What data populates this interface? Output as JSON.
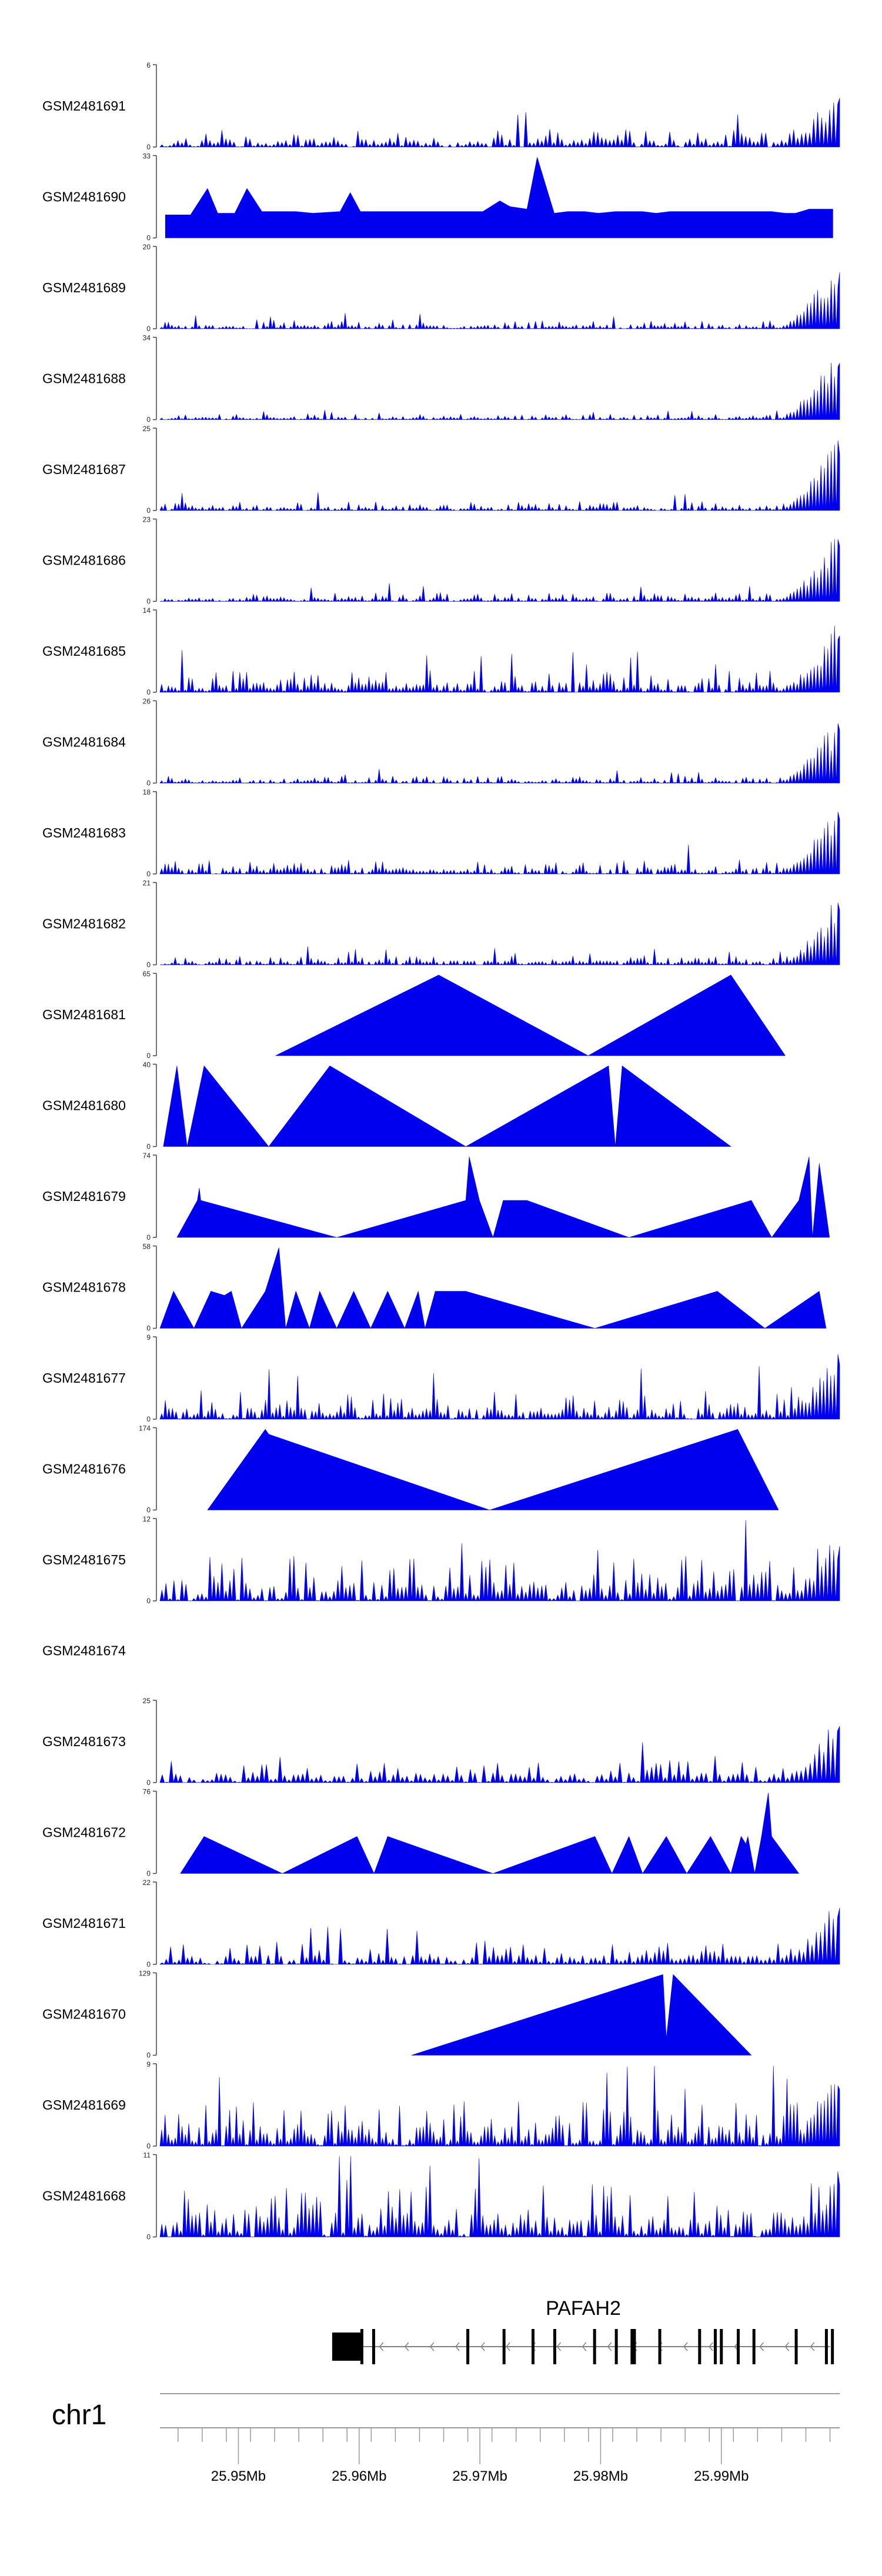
{
  "chart_data": {
    "type": "area",
    "title": "",
    "xlabel": "",
    "ylabel": "",
    "grid": false,
    "legend": "none",
    "color": "#0000ee",
    "x_range_mb": [
      25.9435,
      25.9998
    ],
    "x_ticks": [
      {
        "value": 25.95,
        "label": "25.95Mb"
      },
      {
        "value": 25.96,
        "label": "25.96Mb"
      },
      {
        "value": 25.97,
        "label": "25.97Mb"
      },
      {
        "value": 25.98,
        "label": "25.98Mb"
      },
      {
        "value": 25.99,
        "label": "25.99Mb"
      }
    ],
    "chromosome": "chr1",
    "gene": {
      "name": "PAFAH2",
      "start_mb": 25.9602,
      "end_mb": 25.999,
      "strand": "-",
      "exons_mb": [
        25.9612,
        25.969,
        25.972,
        25.9744,
        25.9762,
        25.9795,
        25.9813,
        25.9826,
        25.9828,
        25.9849,
        25.9882,
        25.9895,
        25.99,
        25.9914,
        25.9927,
        25.9962,
        25.9987,
        25.9992
      ]
    },
    "tracks": [
      {
        "name": "GSM2481691",
        "ymax": 6,
        "ymax_label": "6",
        "style": "spiky",
        "density": 170,
        "base": 0.1,
        "tail": 0.85,
        "seed": 11
      },
      {
        "name": "GSM2481690",
        "ymax": 33,
        "ymax_label": "33",
        "style": "peaks",
        "peaks": [
          [
            0.008,
            0.28
          ],
          [
            0.025,
            0.28
          ],
          [
            0.045,
            0.28
          ],
          [
            0.07,
            0.6
          ],
          [
            0.085,
            0.3
          ],
          [
            0.11,
            0.3
          ],
          [
            0.128,
            0.6
          ],
          [
            0.15,
            0.32
          ],
          [
            0.175,
            0.32
          ],
          [
            0.2,
            0.32
          ],
          [
            0.225,
            0.3
          ],
          [
            0.265,
            0.32
          ],
          [
            0.28,
            0.55
          ],
          [
            0.295,
            0.32
          ],
          [
            0.345,
            0.32
          ],
          [
            0.41,
            0.32
          ],
          [
            0.445,
            0.32
          ],
          [
            0.475,
            0.32
          ],
          [
            0.5,
            0.45
          ],
          [
            0.515,
            0.38
          ],
          [
            0.54,
            0.35
          ],
          [
            0.555,
            0.98
          ],
          [
            0.58,
            0.3
          ],
          [
            0.6,
            0.32
          ],
          [
            0.625,
            0.32
          ],
          [
            0.645,
            0.3
          ],
          [
            0.67,
            0.32
          ],
          [
            0.69,
            0.32
          ],
          [
            0.71,
            0.32
          ],
          [
            0.73,
            0.3
          ],
          [
            0.75,
            0.32
          ],
          [
            0.775,
            0.32
          ],
          [
            0.85,
            0.32
          ],
          [
            0.9,
            0.32
          ],
          [
            0.92,
            0.3
          ],
          [
            0.935,
            0.3
          ],
          [
            0.955,
            0.35
          ],
          [
            0.975,
            0.35
          ],
          [
            0.99,
            0.35
          ]
        ]
      },
      {
        "name": "GSM2481689",
        "ymax": 20,
        "ymax_label": "20",
        "style": "spiky",
        "density": 200,
        "base": 0.05,
        "tail": 0.98,
        "seed": 23
      },
      {
        "name": "GSM2481688",
        "ymax": 34,
        "ymax_label": "34",
        "style": "spiky",
        "density": 200,
        "base": 0.03,
        "tail": 0.98,
        "seed": 37
      },
      {
        "name": "GSM2481687",
        "ymax": 25,
        "ymax_label": "25",
        "style": "spiky",
        "density": 200,
        "base": 0.05,
        "tail": 0.98,
        "seed": 41
      },
      {
        "name": "GSM2481686",
        "ymax": 23,
        "ymax_label": "23",
        "style": "spiky",
        "density": 200,
        "base": 0.05,
        "tail": 0.96,
        "seed": 53
      },
      {
        "name": "GSM2481685",
        "ymax": 14,
        "ymax_label": "14",
        "style": "spiky",
        "density": 200,
        "base": 0.12,
        "tail": 0.98,
        "seed": 61
      },
      {
        "name": "GSM2481684",
        "ymax": 26,
        "ymax_label": "26",
        "style": "spiky",
        "density": 200,
        "base": 0.04,
        "tail": 0.92,
        "seed": 71
      },
      {
        "name": "GSM2481683",
        "ymax": 18,
        "ymax_label": "18",
        "style": "spiky",
        "density": 200,
        "base": 0.08,
        "tail": 0.95,
        "seed": 83
      },
      {
        "name": "GSM2481682",
        "ymax": 21,
        "ymax_label": "21",
        "style": "spiky",
        "density": 200,
        "base": 0.05,
        "tail": 0.95,
        "seed": 97
      },
      {
        "name": "GSM2481681",
        "ymax": 65,
        "ymax_label": "65",
        "style": "peaks",
        "peaks": [
          [
            0.17,
            0.0
          ],
          [
            0.41,
            0.98
          ],
          [
            0.63,
            0.0
          ],
          [
            0.84,
            0.98
          ],
          [
            0.92,
            0.0
          ]
        ]
      },
      {
        "name": "GSM2481680",
        "ymax": 40,
        "ymax_label": "40",
        "style": "peaks",
        "peaks": [
          [
            0.005,
            0.0
          ],
          [
            0.025,
            0.98
          ],
          [
            0.04,
            0.0
          ],
          [
            0.065,
            0.98
          ],
          [
            0.16,
            0.0
          ],
          [
            0.25,
            0.98
          ],
          [
            0.45,
            0.0
          ],
          [
            0.66,
            0.98
          ],
          [
            0.67,
            0.0
          ],
          [
            0.68,
            0.98
          ],
          [
            0.84,
            0.0
          ]
        ]
      },
      {
        "name": "GSM2481679",
        "ymax": 74,
        "ymax_label": "74",
        "style": "peaks",
        "peaks": [
          [
            0.025,
            0.0
          ],
          [
            0.055,
            0.45
          ],
          [
            0.058,
            0.6
          ],
          [
            0.06,
            0.45
          ],
          [
            0.26,
            0.0
          ],
          [
            0.45,
            0.45
          ],
          [
            0.455,
            0.98
          ],
          [
            0.47,
            0.45
          ],
          [
            0.49,
            0.0
          ],
          [
            0.505,
            0.45
          ],
          [
            0.54,
            0.45
          ],
          [
            0.69,
            0.0
          ],
          [
            0.87,
            0.45
          ],
          [
            0.9,
            0.0
          ],
          [
            0.94,
            0.45
          ],
          [
            0.955,
            0.98
          ],
          [
            0.96,
            0.0
          ],
          [
            0.97,
            0.9
          ],
          [
            0.985,
            0.0
          ]
        ]
      },
      {
        "name": "GSM2481678",
        "ymax": 58,
        "ymax_label": "58",
        "style": "peaks",
        "peaks": [
          [
            0.0,
            0.0
          ],
          [
            0.02,
            0.45
          ],
          [
            0.05,
            0.0
          ],
          [
            0.075,
            0.45
          ],
          [
            0.095,
            0.4
          ],
          [
            0.105,
            0.45
          ],
          [
            0.12,
            0.0
          ],
          [
            0.155,
            0.45
          ],
          [
            0.175,
            0.98
          ],
          [
            0.185,
            0.0
          ],
          [
            0.2,
            0.45
          ],
          [
            0.22,
            0.0
          ],
          [
            0.235,
            0.45
          ],
          [
            0.26,
            0.0
          ],
          [
            0.285,
            0.45
          ],
          [
            0.31,
            0.0
          ],
          [
            0.335,
            0.45
          ],
          [
            0.36,
            0.0
          ],
          [
            0.38,
            0.45
          ],
          [
            0.39,
            0.0
          ],
          [
            0.405,
            0.45
          ],
          [
            0.45,
            0.45
          ],
          [
            0.64,
            0.0
          ],
          [
            0.82,
            0.45
          ],
          [
            0.89,
            0.0
          ],
          [
            0.97,
            0.45
          ],
          [
            0.98,
            0.0
          ]
        ]
      },
      {
        "name": "GSM2481677",
        "ymax": 9,
        "ymax_label": "9",
        "style": "spiky",
        "density": 190,
        "base": 0.15,
        "tail": 0.95,
        "seed": 101
      },
      {
        "name": "GSM2481676",
        "ymax": 174,
        "ymax_label": "174",
        "style": "peaks",
        "peaks": [
          [
            0.07,
            0.0
          ],
          [
            0.155,
            0.98
          ],
          [
            0.16,
            0.92
          ],
          [
            0.485,
            0.0
          ],
          [
            0.85,
            0.98
          ],
          [
            0.91,
            0.0
          ]
        ]
      },
      {
        "name": "GSM2481675",
        "ymax": 12,
        "ymax_label": "12",
        "style": "spiky",
        "density": 170,
        "base": 0.25,
        "tail": 0.95,
        "seed": 113
      },
      {
        "name": "GSM2481674",
        "ymax": 0,
        "ymax_label": "",
        "style": "empty"
      },
      {
        "name": "GSM2481673",
        "ymax": 25,
        "ymax_label": "25",
        "style": "spiky",
        "density": 150,
        "base": 0.12,
        "tail": 0.98,
        "seed": 127
      },
      {
        "name": "GSM2481672",
        "ymax": 76,
        "ymax_label": "76",
        "style": "peaks",
        "peaks": [
          [
            0.03,
            0.0
          ],
          [
            0.065,
            0.45
          ],
          [
            0.18,
            0.0
          ],
          [
            0.29,
            0.45
          ],
          [
            0.315,
            0.0
          ],
          [
            0.335,
            0.45
          ],
          [
            0.49,
            0.0
          ],
          [
            0.64,
            0.45
          ],
          [
            0.665,
            0.0
          ],
          [
            0.69,
            0.45
          ],
          [
            0.71,
            0.0
          ],
          [
            0.745,
            0.45
          ],
          [
            0.775,
            0.0
          ],
          [
            0.81,
            0.45
          ],
          [
            0.84,
            0.0
          ],
          [
            0.855,
            0.45
          ],
          [
            0.862,
            0.36
          ],
          [
            0.865,
            0.45
          ],
          [
            0.875,
            0.0
          ],
          [
            0.885,
            0.45
          ],
          [
            0.895,
            0.98
          ],
          [
            0.9,
            0.45
          ],
          [
            0.94,
            0.0
          ]
        ]
      },
      {
        "name": "GSM2481671",
        "ymax": 22,
        "ymax_label": "22",
        "style": "spiky",
        "density": 160,
        "base": 0.12,
        "tail": 0.98,
        "seed": 131
      },
      {
        "name": "GSM2481670",
        "ymax": 129,
        "ymax_label": "129",
        "style": "peaks",
        "peaks": [
          [
            0.37,
            0.0
          ],
          [
            0.74,
            0.98
          ],
          [
            0.745,
            0.2
          ],
          [
            0.755,
            0.98
          ],
          [
            0.87,
            0.0
          ]
        ]
      },
      {
        "name": "GSM2481669",
        "ymax": 9,
        "ymax_label": "9",
        "style": "spiky",
        "density": 200,
        "base": 0.25,
        "tail": 0.98,
        "seed": 149
      },
      {
        "name": "GSM2481668",
        "ymax": 11,
        "ymax_label": "11",
        "style": "spiky",
        "density": 180,
        "base": 0.3,
        "tail": 0.9,
        "seed": 157
      }
    ]
  }
}
